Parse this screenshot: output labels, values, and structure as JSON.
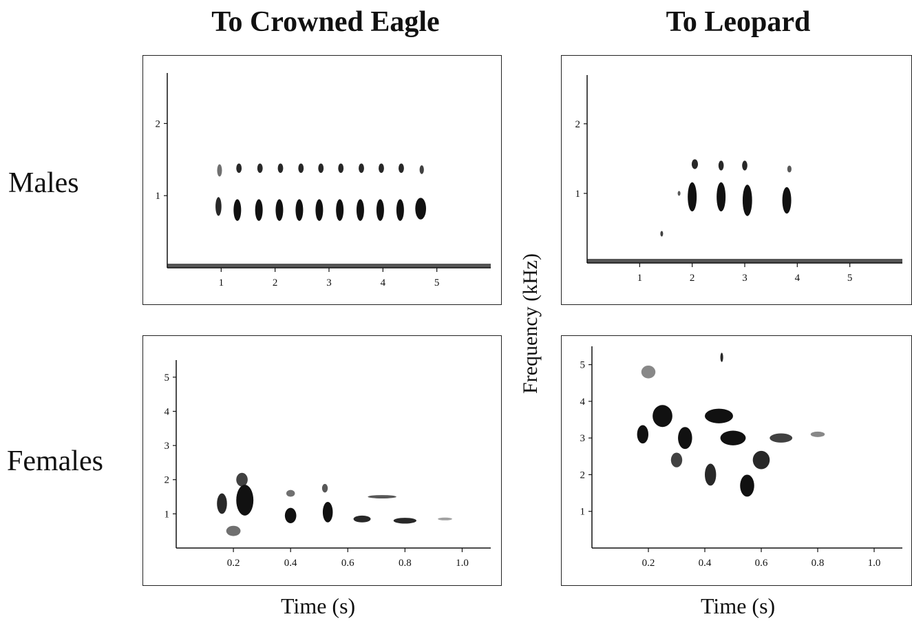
{
  "titles": {
    "col1": "To Crowned Eagle",
    "col2": "To Leopard",
    "row1": "Males",
    "row2": "Females",
    "ylabel": "Frequency (kHz)",
    "xlabel_left": "Time (s)",
    "xlabel_right": "Time (s)"
  },
  "chart_data": [
    {
      "type": "heatmap",
      "panel": "males-crowned-eagle",
      "xlim": [
        0,
        6
      ],
      "ylim": [
        0,
        2.7
      ],
      "xticks": [
        1,
        2,
        3,
        4,
        5
      ],
      "yticks": [
        1,
        2
      ],
      "blobs": [
        {
          "t": 0.95,
          "f": 0.85,
          "w": 0.11,
          "h": 0.26,
          "d": 0.9
        },
        {
          "t": 0.97,
          "f": 1.35,
          "w": 0.09,
          "h": 0.17,
          "d": 0.6
        },
        {
          "t": 1.3,
          "f": 0.8,
          "w": 0.14,
          "h": 0.3,
          "d": 1
        },
        {
          "t": 1.33,
          "f": 1.38,
          "w": 0.1,
          "h": 0.13,
          "d": 0.9
        },
        {
          "t": 1.7,
          "f": 0.8,
          "w": 0.14,
          "h": 0.3,
          "d": 1
        },
        {
          "t": 1.72,
          "f": 1.38,
          "w": 0.1,
          "h": 0.13,
          "d": 0.9
        },
        {
          "t": 2.08,
          "f": 0.8,
          "w": 0.14,
          "h": 0.3,
          "d": 1
        },
        {
          "t": 2.1,
          "f": 1.38,
          "w": 0.1,
          "h": 0.13,
          "d": 0.9
        },
        {
          "t": 2.45,
          "f": 0.8,
          "w": 0.14,
          "h": 0.3,
          "d": 1
        },
        {
          "t": 2.48,
          "f": 1.38,
          "w": 0.1,
          "h": 0.13,
          "d": 0.9
        },
        {
          "t": 2.82,
          "f": 0.8,
          "w": 0.14,
          "h": 0.3,
          "d": 1
        },
        {
          "t": 2.85,
          "f": 1.38,
          "w": 0.1,
          "h": 0.13,
          "d": 0.9
        },
        {
          "t": 3.2,
          "f": 0.8,
          "w": 0.14,
          "h": 0.3,
          "d": 1
        },
        {
          "t": 3.22,
          "f": 1.38,
          "w": 0.1,
          "h": 0.13,
          "d": 0.9
        },
        {
          "t": 3.58,
          "f": 0.8,
          "w": 0.14,
          "h": 0.3,
          "d": 1
        },
        {
          "t": 3.6,
          "f": 1.38,
          "w": 0.1,
          "h": 0.13,
          "d": 0.9
        },
        {
          "t": 3.95,
          "f": 0.8,
          "w": 0.14,
          "h": 0.3,
          "d": 1
        },
        {
          "t": 3.97,
          "f": 1.38,
          "w": 0.1,
          "h": 0.13,
          "d": 0.9
        },
        {
          "t": 4.32,
          "f": 0.8,
          "w": 0.14,
          "h": 0.3,
          "d": 1
        },
        {
          "t": 4.34,
          "f": 1.38,
          "w": 0.1,
          "h": 0.13,
          "d": 0.9
        },
        {
          "t": 4.7,
          "f": 0.82,
          "w": 0.2,
          "h": 0.3,
          "d": 1
        },
        {
          "t": 4.72,
          "f": 1.36,
          "w": 0.08,
          "h": 0.12,
          "d": 0.8
        }
      ]
    },
    {
      "type": "heatmap",
      "panel": "males-leopard",
      "xlim": [
        0,
        6
      ],
      "ylim": [
        0,
        2.7
      ],
      "xticks": [
        1,
        2,
        3,
        4,
        5
      ],
      "yticks": [
        1,
        2
      ],
      "blobs": [
        {
          "t": 1.42,
          "f": 0.42,
          "w": 0.05,
          "h": 0.08,
          "d": 0.8
        },
        {
          "t": 1.75,
          "f": 1.0,
          "w": 0.04,
          "h": 0.07,
          "d": 0.7
        },
        {
          "t": 2.0,
          "f": 0.95,
          "w": 0.17,
          "h": 0.42,
          "d": 1
        },
        {
          "t": 2.05,
          "f": 1.42,
          "w": 0.12,
          "h": 0.14,
          "d": 0.9
        },
        {
          "t": 2.55,
          "f": 0.95,
          "w": 0.17,
          "h": 0.42,
          "d": 1
        },
        {
          "t": 2.55,
          "f": 1.4,
          "w": 0.1,
          "h": 0.14,
          "d": 0.9
        },
        {
          "t": 3.05,
          "f": 0.9,
          "w": 0.18,
          "h": 0.45,
          "d": 1
        },
        {
          "t": 3.0,
          "f": 1.4,
          "w": 0.1,
          "h": 0.14,
          "d": 0.9
        },
        {
          "t": 3.8,
          "f": 0.9,
          "w": 0.17,
          "h": 0.38,
          "d": 1
        },
        {
          "t": 3.85,
          "f": 1.35,
          "w": 0.08,
          "h": 0.1,
          "d": 0.7
        }
      ]
    },
    {
      "type": "heatmap",
      "panel": "females-crowned-eagle",
      "xlim": [
        0,
        1.1
      ],
      "ylim": [
        0,
        5.5
      ],
      "xticks": [
        0.2,
        0.4,
        0.6,
        0.8,
        1.0
      ],
      "yticks": [
        1,
        2,
        3,
        4,
        5
      ],
      "blobs": [
        {
          "t": 0.16,
          "f": 1.3,
          "w": 0.035,
          "h": 0.6,
          "d": 0.9
        },
        {
          "t": 0.24,
          "f": 1.4,
          "w": 0.06,
          "h": 0.9,
          "d": 1
        },
        {
          "t": 0.23,
          "f": 2.0,
          "w": 0.04,
          "h": 0.4,
          "d": 0.8
        },
        {
          "t": 0.2,
          "f": 0.5,
          "w": 0.05,
          "h": 0.3,
          "d": 0.6
        },
        {
          "t": 0.4,
          "f": 0.95,
          "w": 0.04,
          "h": 0.45,
          "d": 1
        },
        {
          "t": 0.4,
          "f": 1.6,
          "w": 0.03,
          "h": 0.2,
          "d": 0.6
        },
        {
          "t": 0.53,
          "f": 1.05,
          "w": 0.035,
          "h": 0.6,
          "d": 1
        },
        {
          "t": 0.52,
          "f": 1.75,
          "w": 0.02,
          "h": 0.25,
          "d": 0.7
        },
        {
          "t": 0.65,
          "f": 0.85,
          "w": 0.06,
          "h": 0.2,
          "d": 0.9
        },
        {
          "t": 0.8,
          "f": 0.8,
          "w": 0.08,
          "h": 0.17,
          "d": 0.9
        },
        {
          "t": 0.72,
          "f": 1.5,
          "w": 0.1,
          "h": 0.1,
          "d": 0.7
        },
        {
          "t": 0.94,
          "f": 0.85,
          "w": 0.05,
          "h": 0.08,
          "d": 0.4
        }
      ]
    },
    {
      "type": "heatmap",
      "panel": "females-leopard",
      "xlim": [
        0,
        1.1
      ],
      "ylim": [
        0,
        5.5
      ],
      "xticks": [
        0.2,
        0.4,
        0.6,
        0.8,
        1.0
      ],
      "yticks": [
        1,
        2,
        3,
        4,
        5
      ],
      "blobs": [
        {
          "t": 0.18,
          "f": 3.1,
          "w": 0.04,
          "h": 0.5,
          "d": 1
        },
        {
          "t": 0.25,
          "f": 3.6,
          "w": 0.07,
          "h": 0.6,
          "d": 1
        },
        {
          "t": 0.33,
          "f": 3.0,
          "w": 0.05,
          "h": 0.6,
          "d": 1
        },
        {
          "t": 0.3,
          "f": 2.4,
          "w": 0.04,
          "h": 0.4,
          "d": 0.8
        },
        {
          "t": 0.45,
          "f": 3.6,
          "w": 0.1,
          "h": 0.4,
          "d": 1
        },
        {
          "t": 0.5,
          "f": 3.0,
          "w": 0.09,
          "h": 0.4,
          "d": 1
        },
        {
          "t": 0.42,
          "f": 2.0,
          "w": 0.04,
          "h": 0.6,
          "d": 0.9
        },
        {
          "t": 0.55,
          "f": 1.7,
          "w": 0.05,
          "h": 0.6,
          "d": 1
        },
        {
          "t": 0.6,
          "f": 2.4,
          "w": 0.06,
          "h": 0.5,
          "d": 0.9
        },
        {
          "t": 0.67,
          "f": 3.0,
          "w": 0.08,
          "h": 0.25,
          "d": 0.8
        },
        {
          "t": 0.8,
          "f": 3.1,
          "w": 0.05,
          "h": 0.15,
          "d": 0.5
        },
        {
          "t": 0.2,
          "f": 4.8,
          "w": 0.05,
          "h": 0.35,
          "d": 0.5
        },
        {
          "t": 0.46,
          "f": 5.2,
          "w": 0.01,
          "h": 0.25,
          "d": 0.9
        }
      ]
    }
  ]
}
